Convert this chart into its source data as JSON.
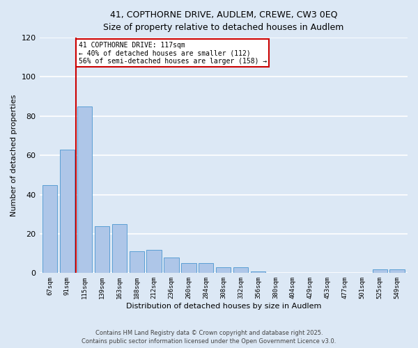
{
  "title_line1": "41, COPTHORNE DRIVE, AUDLEM, CREWE, CW3 0EQ",
  "title_line2": "Size of property relative to detached houses in Audlem",
  "xlabel": "Distribution of detached houses by size in Audlem",
  "ylabel": "Number of detached properties",
  "bins": [
    "67sqm",
    "91sqm",
    "115sqm",
    "139sqm",
    "163sqm",
    "188sqm",
    "212sqm",
    "236sqm",
    "260sqm",
    "284sqm",
    "308sqm",
    "332sqm",
    "356sqm",
    "380sqm",
    "404sqm",
    "429sqm",
    "453sqm",
    "477sqm",
    "501sqm",
    "525sqm",
    "549sqm"
  ],
  "values": [
    45,
    63,
    85,
    24,
    25,
    11,
    12,
    8,
    5,
    5,
    3,
    3,
    1,
    0,
    0,
    0,
    0,
    0,
    0,
    2,
    2
  ],
  "bar_color": "#aec6e8",
  "bar_edge_color": "#5a9fd4",
  "redline_x": 1.5,
  "annotation_text": "41 COPTHORNE DRIVE: 117sqm\n← 40% of detached houses are smaller (112)\n56% of semi-detached houses are larger (158) →",
  "annotation_box_color": "#ffffff",
  "annotation_box_edge": "#cc0000",
  "redline_color": "#cc0000",
  "ylim": [
    0,
    120
  ],
  "yticks": [
    0,
    20,
    40,
    60,
    80,
    100,
    120
  ],
  "footer_line1": "Contains HM Land Registry data © Crown copyright and database right 2025.",
  "footer_line2": "Contains public sector information licensed under the Open Government Licence v3.0.",
  "background_color": "#dce8f5",
  "grid_color": "#ffffff"
}
